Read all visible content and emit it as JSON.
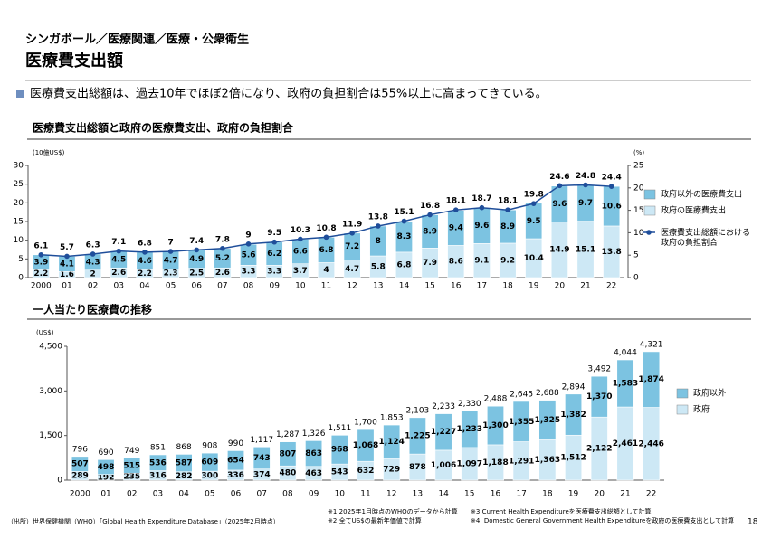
{
  "header": "シンガポール／医療関連／医療・公衆衛生",
  "title": "医療費支出額",
  "summary": "医療費支出総額は、過去10年でほぼ2倍になり、政府の負担割合は55%以上に高まってきている。",
  "chart_data": [
    {
      "type": "bar",
      "stacked": true,
      "title": "医療費支出総額と政府の医療費支出、政府の負担割合",
      "y_label": "(10億US$)",
      "y2_label": "(%)",
      "categories": [
        "2000",
        "01",
        "02",
        "03",
        "04",
        "05",
        "06",
        "07",
        "08",
        "09",
        "10",
        "11",
        "12",
        "13",
        "14",
        "15",
        "16",
        "17",
        "18",
        "19",
        "20",
        "21",
        "22"
      ],
      "series": [
        {
          "name": "政府の医療費支出",
          "type": "bar",
          "color": "#cde8f5",
          "values": [
            2.2,
            1.6,
            2.0,
            2.6,
            2.2,
            2.3,
            2.5,
            2.6,
            3.3,
            3.3,
            3.7,
            4.0,
            4.7,
            5.8,
            6.8,
            7.9,
            8.6,
            9.1,
            9.2,
            10.4,
            14.9,
            15.1,
            13.8
          ]
        },
        {
          "name": "政府以外の医療費支出",
          "type": "bar",
          "color": "#7cc3e1",
          "values": [
            3.9,
            4.1,
            4.3,
            4.5,
            4.6,
            4.7,
            4.9,
            5.2,
            5.6,
            6.2,
            6.6,
            6.8,
            7.2,
            8.0,
            8.3,
            8.9,
            9.4,
            9.6,
            8.9,
            9.5,
            9.6,
            9.7,
            10.6
          ]
        },
        {
          "name": "医療費支出総額における政府の負担割合",
          "type": "line",
          "color": "#1f4e9a",
          "values": [
            6.1,
            5.7,
            6.3,
            7.1,
            6.8,
            7.0,
            7.4,
            7.8,
            9.0,
            9.5,
            10.3,
            10.8,
            11.9,
            13.8,
            15.1,
            16.8,
            18.1,
            18.7,
            18.1,
            19.8,
            24.6,
            24.8,
            24.4
          ]
        }
      ],
      "ylim": [
        0,
        30
      ],
      "yticks": [
        0,
        5,
        10,
        15,
        20,
        25,
        30
      ],
      "y2lim": [
        0,
        25
      ],
      "y2ticks": [
        0,
        5,
        10,
        15,
        20,
        25
      ],
      "grid": false,
      "legend": "right"
    },
    {
      "type": "bar",
      "stacked": true,
      "title": "一人当たり医療費の推移",
      "y_label": "(US$)",
      "categories": [
        "2000",
        "01",
        "02",
        "03",
        "04",
        "05",
        "06",
        "07",
        "08",
        "09",
        "10",
        "11",
        "12",
        "13",
        "14",
        "15",
        "16",
        "17",
        "18",
        "19",
        "20",
        "21",
        "22"
      ],
      "series": [
        {
          "name": "政府",
          "type": "bar",
          "color": "#cde8f5",
          "values": [
            289,
            192,
            235,
            316,
            282,
            300,
            336,
            374,
            480,
            463,
            543,
            632,
            729,
            878,
            1006,
            1097,
            1188,
            1291,
            1363,
            1512,
            2122,
            2461,
            2446
          ],
          "value_labels": [
            "289",
            "192",
            "235",
            "316",
            "282",
            "300",
            "336",
            "374",
            "480",
            "463",
            "543",
            "632",
            "729",
            "878",
            "1,006",
            "1,097",
            "1,188",
            "1,291",
            "1,363",
            "1,512",
            "2,122",
            "2,461",
            "2,446"
          ]
        },
        {
          "name": "政府以外",
          "type": "bar",
          "color": "#7cc3e1",
          "values": [
            507,
            498,
            515,
            536,
            587,
            609,
            654,
            743,
            807,
            863,
            968,
            1068,
            1124,
            1225,
            1227,
            1233,
            1300,
            1355,
            1325,
            1382,
            1370,
            1583,
            1874
          ],
          "value_labels": [
            "507",
            "498",
            "515",
            "536",
            "587",
            "609",
            "654",
            "743",
            "807",
            "863",
            "968",
            "1,068",
            "1,124",
            "1,225",
            "1,227",
            "1,233",
            "1,300",
            "1,355",
            "1,325",
            "1,382",
            "1,370",
            "1,583",
            "1,874"
          ]
        }
      ],
      "totals": {
        "values": [
          796,
          690,
          749,
          851,
          868,
          908,
          990,
          1117,
          1287,
          1326,
          1511,
          1700,
          1853,
          2103,
          2233,
          2330,
          2488,
          2645,
          2688,
          2894,
          3492,
          4044,
          4321
        ],
        "value_labels": [
          "796",
          "690",
          "749",
          "851",
          "868",
          "908",
          "990",
          "1,117",
          "1,287",
          "1,326",
          "1,511",
          "1,700",
          "1,853",
          "2,103",
          "2,233",
          "2,330",
          "2,488",
          "2,645",
          "2,688",
          "2,894",
          "3,492",
          "4,044",
          "4,321"
        ]
      },
      "ylim": [
        0,
        4500
      ],
      "yticks": [
        0,
        {
          "value": 1500,
          "label": "1,500"
        },
        {
          "value": 3000,
          "label": "3,000"
        },
        {
          "value": 4500,
          "label": "4,500"
        }
      ],
      "grid": false,
      "legend": "right"
    }
  ],
  "notes": [
    "※1:2025年1月時点のWHOのデータから計算",
    "※2:全てUS$の最新年価値で計算",
    "※3:Current Health Expenditureを医療費支出総額として計算",
    "※4: Domestic General Government Health Expenditureを政府の医療費支出として計算"
  ],
  "source": "（出所）世界保健機関（WHO）「Global Health Expenditure Database」（2025年2月時点）",
  "page_number": "18"
}
